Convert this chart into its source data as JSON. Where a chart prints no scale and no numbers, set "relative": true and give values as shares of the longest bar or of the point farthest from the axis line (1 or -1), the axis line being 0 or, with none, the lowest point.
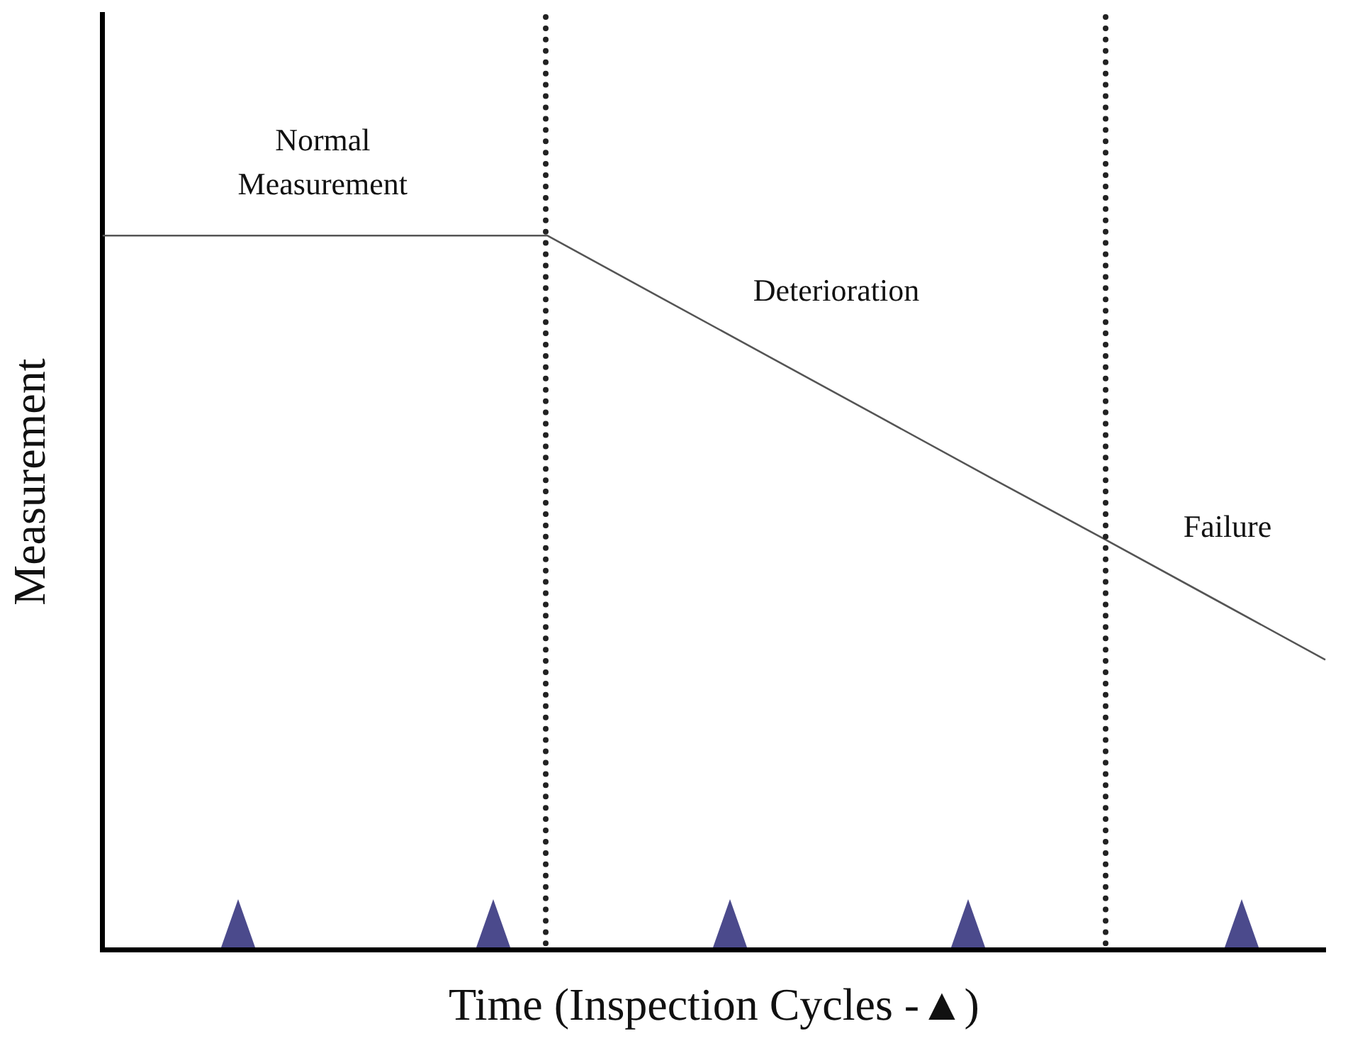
{
  "chart_data": {
    "type": "line",
    "relative": true,
    "xlabel": "Time (Inspection Cycles -▲)",
    "ylabel": "Measurement",
    "categories": [
      null,
      null,
      null,
      null,
      null,
      null,
      null,
      null,
      null,
      null,
      null,
      null
    ],
    "series": [
      {
        "color": "#555555",
        "values": [
          1,
          1,
          1,
          1,
          1,
          0.915,
          0.83,
          0.745,
          0.66,
          0.576,
          0.491,
          0.406
        ]
      }
    ],
    "annotations": [
      "Normal\nMeasurement",
      "Deterioration",
      "Failure"
    ]
  }
}
